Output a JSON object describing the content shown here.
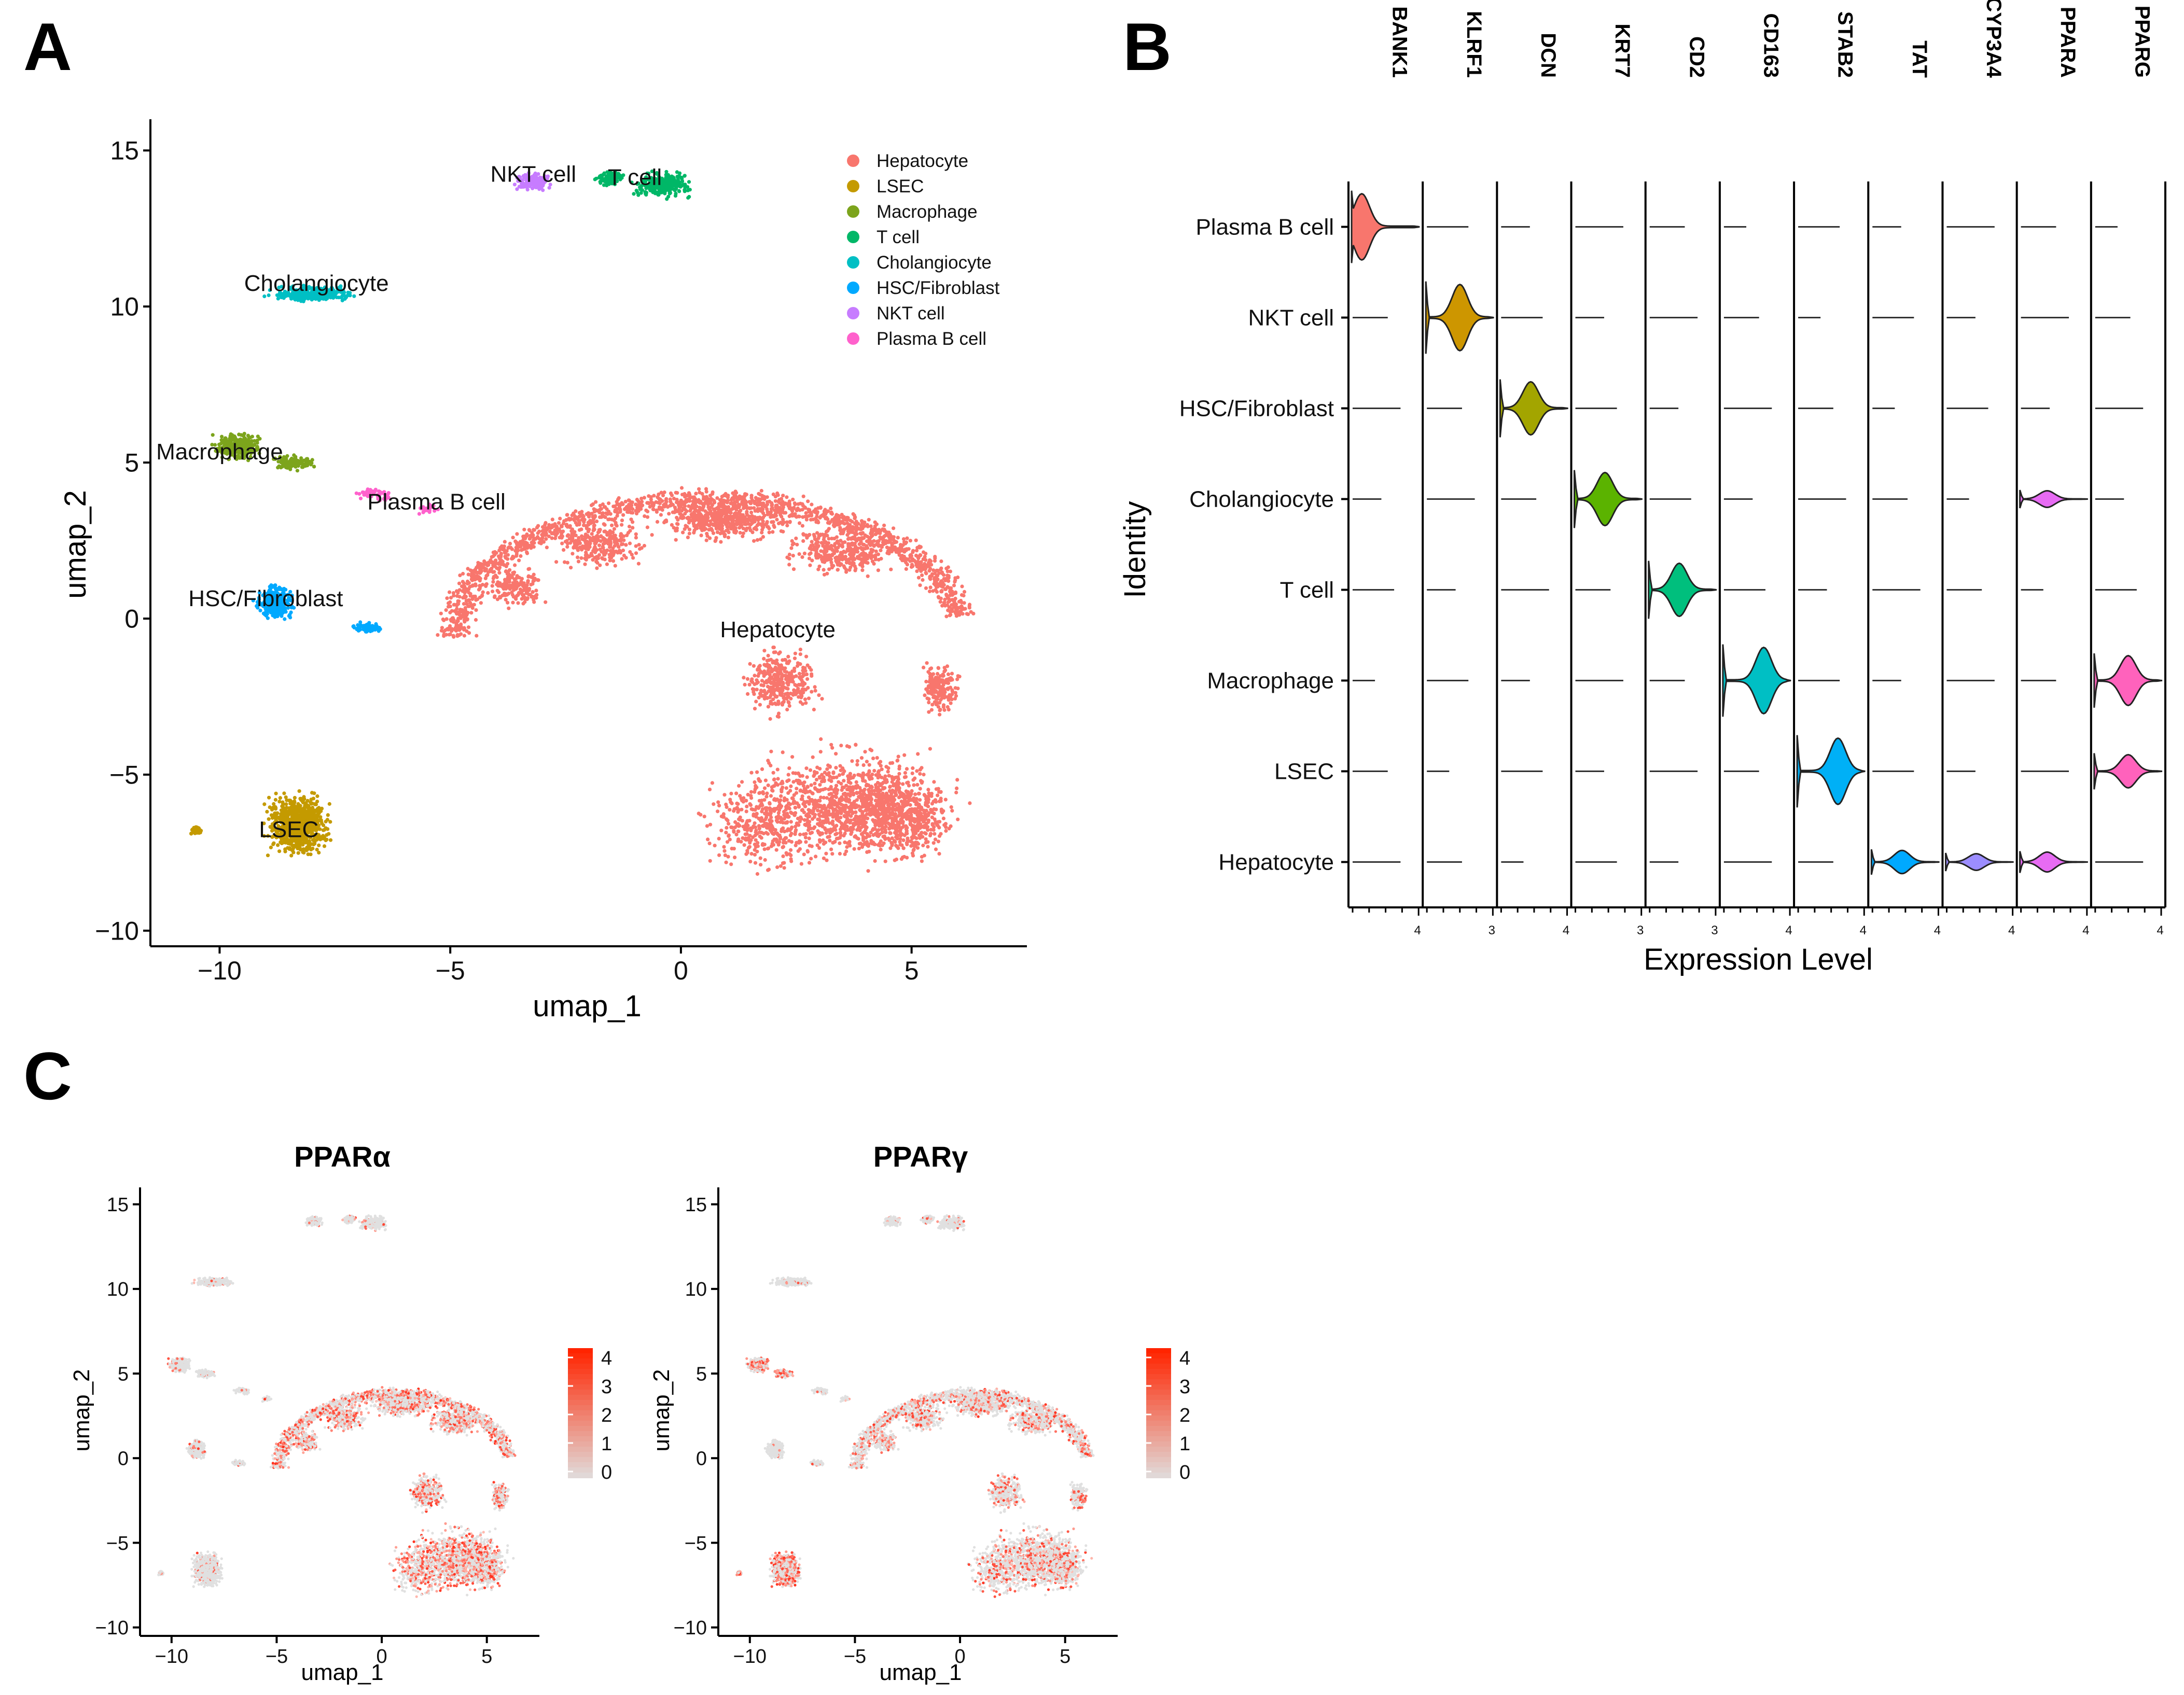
{
  "figure": {
    "panel_letters": [
      "A",
      "B",
      "C"
    ]
  },
  "chart_data": [
    {
      "panel": "A",
      "type": "scatter",
      "title": "",
      "xlabel": "umap_1",
      "ylabel": "umap_2",
      "xlim": [
        -11.5,
        7.5
      ],
      "ylim": [
        -10.5,
        16
      ],
      "xticks": [
        -10,
        -5,
        0,
        5
      ],
      "yticks": [
        -10,
        -5,
        0,
        5,
        10,
        15
      ],
      "grid": false,
      "legend_position": "top-right",
      "series": [
        {
          "name": "Hepatocyte",
          "color": "#f8766d",
          "center": [
            3.2,
            -4.5
          ]
        },
        {
          "name": "LSEC",
          "color": "#c49a00",
          "center": [
            -8.3,
            -6.6
          ]
        },
        {
          "name": "Macrophage",
          "color": "#7ca41c",
          "center": [
            -9.3,
            5.3
          ]
        },
        {
          "name": "T cell",
          "color": "#00b767",
          "center": [
            -0.8,
            13.8
          ]
        },
        {
          "name": "Cholangiocyte",
          "color": "#00bfc4",
          "center": [
            -8.0,
            10.4
          ]
        },
        {
          "name": "HSC/Fibroblast",
          "color": "#00a9ff",
          "center": [
            -8.6,
            0.4
          ]
        },
        {
          "name": "NKT cell",
          "color": "#c77cff",
          "center": [
            -3.2,
            14.0
          ]
        },
        {
          "name": "Plasma B cell",
          "color": "#ff61cc",
          "center": [
            -5.6,
            3.5
          ]
        }
      ],
      "annotations": [
        {
          "text": "NKT cell",
          "x": -3.2,
          "y": 14.0
        },
        {
          "text": "T cell",
          "x": -1.0,
          "y": 13.9
        },
        {
          "text": "Cholangiocyte",
          "x": -7.9,
          "y": 10.5
        },
        {
          "text": "Macrophage",
          "x": -10.0,
          "y": 5.1
        },
        {
          "text": "Plasma B cell",
          "x": -5.3,
          "y": 3.5
        },
        {
          "text": "HSC/Fibroblast",
          "x": -9.0,
          "y": 0.4
        },
        {
          "text": "Hepatocyte",
          "x": 2.1,
          "y": -0.6
        },
        {
          "text": "LSEC",
          "x": -8.5,
          "y": -7.0
        }
      ]
    },
    {
      "panel": "B",
      "type": "violin",
      "xlabel": "Expression Level",
      "ylabel": "Identity",
      "genes": [
        "BANK1",
        "KLRF1",
        "DCN",
        "KRT7",
        "CD2",
        "CD163",
        "STAB2",
        "TAT",
        "CYP3A4",
        "PPARA",
        "PPARG"
      ],
      "max_tick": [
        "4",
        "3",
        "4",
        "3",
        "3",
        "4",
        "4",
        "4",
        "4",
        "4",
        "4"
      ],
      "identities": [
        "Plasma B cell",
        "NKT cell",
        "HSC/Fibroblast",
        "Cholangiocyte",
        "T cell",
        "Macrophage",
        "LSEC",
        "Hepatocyte"
      ],
      "expressed": [
        {
          "gene": "BANK1",
          "identity": "Plasma B cell",
          "color": "#f8766d",
          "peak": 0.15,
          "scale": 1.0
        },
        {
          "gene": "KLRF1",
          "identity": "NKT cell",
          "color": "#cd9600",
          "peak": 0.5,
          "scale": 1.0
        },
        {
          "gene": "DCN",
          "identity": "HSC/Fibroblast",
          "color": "#a3a500",
          "peak": 0.45,
          "scale": 0.8
        },
        {
          "gene": "KRT7",
          "identity": "Cholangiocyte",
          "color": "#5bb300",
          "peak": 0.45,
          "scale": 0.8
        },
        {
          "gene": "CD2",
          "identity": "T cell",
          "color": "#00bf7d",
          "peak": 0.45,
          "scale": 0.8
        },
        {
          "gene": "CD163",
          "identity": "Macrophage",
          "color": "#00bfc4",
          "peak": 0.6,
          "scale": 1.0
        },
        {
          "gene": "STAB2",
          "identity": "LSEC",
          "color": "#00b0f6",
          "peak": 0.6,
          "scale": 1.0
        },
        {
          "gene": "TAT",
          "identity": "Hepatocyte",
          "color": "#00a9ff",
          "peak": 0.45,
          "scale": 0.35
        },
        {
          "gene": "CYP3A4",
          "identity": "Hepatocyte",
          "color": "#9c8dff",
          "peak": 0.45,
          "scale": 0.25
        },
        {
          "gene": "PPARA",
          "identity": "Hepatocyte",
          "color": "#e76bf3",
          "peak": 0.4,
          "scale": 0.3
        },
        {
          "gene": "PPARA",
          "identity": "Cholangiocyte",
          "color": "#e76bf3",
          "peak": 0.4,
          "scale": 0.25
        },
        {
          "gene": "PPARG",
          "identity": "Macrophage",
          "color": "#ff62bc",
          "peak": 0.5,
          "scale": 0.75
        },
        {
          "gene": "PPARG",
          "identity": "LSEC",
          "color": "#ff62bc",
          "peak": 0.5,
          "scale": 0.5
        }
      ]
    },
    {
      "panel": "C",
      "type": "scatter",
      "title": "PPARα",
      "xlabel": "umap_1",
      "ylabel": "umap_2",
      "xlim": [
        -11.5,
        7.5
      ],
      "ylim": [
        -10.5,
        16
      ],
      "xticks": [
        -10,
        -5,
        0,
        5
      ],
      "yticks": [
        -10,
        -5,
        0,
        5,
        10,
        15
      ],
      "colorbar": {
        "ticks": [
          "4",
          "3",
          "2",
          "1",
          "0"
        ],
        "low": "#e0e0e0",
        "high": "#ff2400"
      },
      "expression_fraction": 0.45
    },
    {
      "panel": "C",
      "type": "scatter",
      "title": "PPARγ",
      "xlabel": "umap_1",
      "ylabel": "umap_2",
      "xlim": [
        -11.5,
        7.5
      ],
      "ylim": [
        -10.5,
        16
      ],
      "xticks": [
        -10,
        -5,
        0,
        5
      ],
      "yticks": [
        -10,
        -5,
        0,
        5,
        10,
        15
      ],
      "colorbar": {
        "ticks": [
          "4",
          "3",
          "2",
          "1",
          "0"
        ],
        "low": "#e0e0e0",
        "high": "#ff2400"
      },
      "expression_fraction": 0.3
    }
  ]
}
